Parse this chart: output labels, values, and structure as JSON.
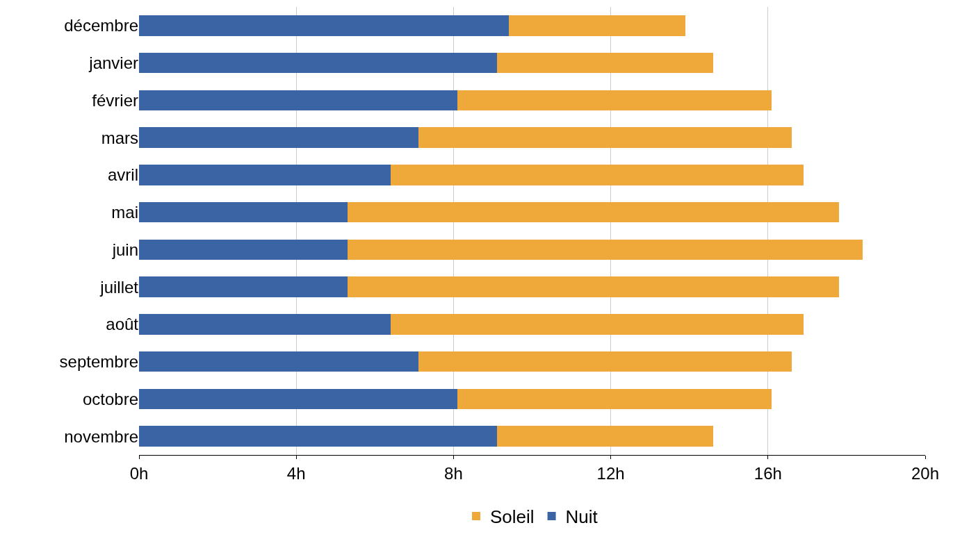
{
  "chart_data": {
    "type": "bar",
    "orientation": "horizontal",
    "stacked": true,
    "categories": [
      "décembre",
      "janvier",
      "février",
      "mars",
      "avril",
      "mai",
      "juin",
      "juillet",
      "août",
      "septembre",
      "octobre",
      "novembre"
    ],
    "series": [
      {
        "name": "Nuit",
        "color": "#3a64a4",
        "values": [
          9.4,
          9.1,
          8.1,
          7.1,
          6.4,
          5.3,
          5.3,
          5.3,
          6.4,
          7.1,
          8.1,
          9.1
        ]
      },
      {
        "name": "Soleil",
        "color": "#efa93b",
        "values": [
          4.5,
          5.5,
          8.0,
          9.5,
          10.5,
          12.5,
          13.1,
          12.5,
          10.5,
          9.5,
          8.0,
          5.5
        ]
      }
    ],
    "xlim": [
      0,
      20
    ],
    "xticks": [
      {
        "value": 0,
        "label": "0h"
      },
      {
        "value": 4,
        "label": "4h"
      },
      {
        "value": 8,
        "label": "8h"
      },
      {
        "value": 12,
        "label": "12h"
      },
      {
        "value": 16,
        "label": "16h"
      },
      {
        "value": 20,
        "label": "20h"
      }
    ],
    "grid": "x",
    "legend": "bottom"
  }
}
